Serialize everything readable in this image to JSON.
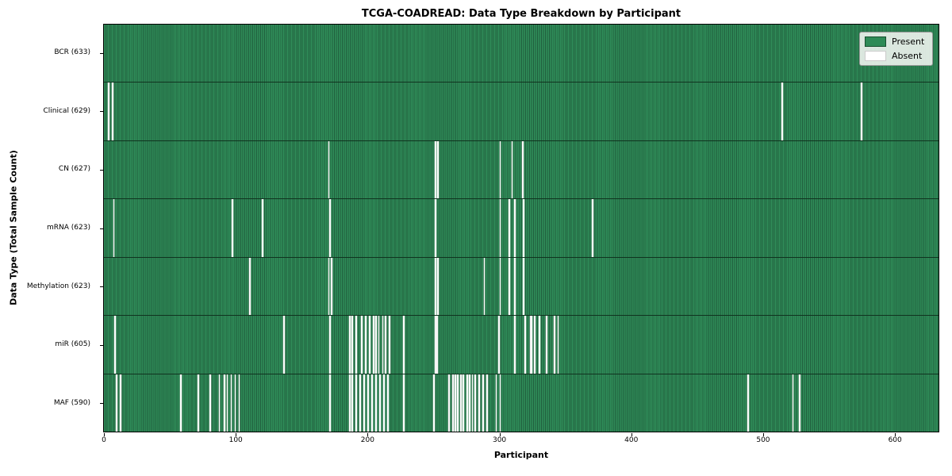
{
  "chart_data": {
    "type": "heatmap",
    "title": "TCGA-COADREAD: Data Type Breakdown by Participant",
    "xlabel": "Participant",
    "ylabel": "Data Type (Total Sample Count)",
    "x_tick_values": [
      0,
      100,
      200,
      300,
      400,
      500,
      600
    ],
    "xlim": [
      0,
      633
    ],
    "n_participants": 633,
    "grid": false,
    "present_color": "#2e8b57",
    "absent_color": "#ffffff",
    "legend": {
      "position": "upper right",
      "entries": [
        {
          "label": "Present",
          "color": "#2e8b57",
          "edge": "#17502f"
        },
        {
          "label": "Absent",
          "color": "#ffffff",
          "edge": "#cccccc"
        }
      ]
    },
    "rows": [
      {
        "label": "BCR (633)",
        "data_type": "BCR",
        "present_count": 633,
        "absent_participants": []
      },
      {
        "label": "Clinical (629)",
        "data_type": "Clinical",
        "present_count": 629,
        "absent_participants": [
          3,
          6,
          514,
          574
        ]
      },
      {
        "label": "CN (627)",
        "data_type": "CN",
        "present_count": 627,
        "absent_participants": [
          170,
          251,
          253,
          300,
          309,
          317
        ]
      },
      {
        "label": "mRNA (623)",
        "data_type": "mRNA",
        "present_count": 623,
        "absent_participants": [
          7,
          97,
          120,
          171,
          251,
          300,
          307,
          311,
          318,
          370
        ]
      },
      {
        "label": "Methylation (623)",
        "data_type": "Methylation",
        "present_count": 623,
        "absent_participants": [
          110,
          170,
          172,
          251,
          253,
          288,
          300,
          307,
          311,
          318
        ]
      },
      {
        "label": "miR (605)",
        "data_type": "miR",
        "present_count": 605,
        "absent_participants": [
          8,
          136,
          171,
          186,
          188,
          191,
          195,
          198,
          201,
          204,
          206,
          208,
          211,
          213,
          216,
          227,
          251,
          252,
          299,
          311,
          319,
          323,
          324,
          326,
          330,
          335,
          341,
          344
        ]
      },
      {
        "label": "MAF (590)",
        "data_type": "MAF",
        "present_count": 590,
        "absent_participants": [
          9,
          12,
          58,
          71,
          80,
          87,
          91,
          93,
          96,
          99,
          102,
          171,
          186,
          188,
          191,
          194,
          197,
          200,
          203,
          206,
          209,
          212,
          215,
          227,
          250,
          261,
          264,
          266,
          268,
          270,
          272,
          275,
          277,
          279,
          281,
          284,
          287,
          290,
          297,
          300,
          488,
          522,
          527
        ]
      }
    ]
  }
}
